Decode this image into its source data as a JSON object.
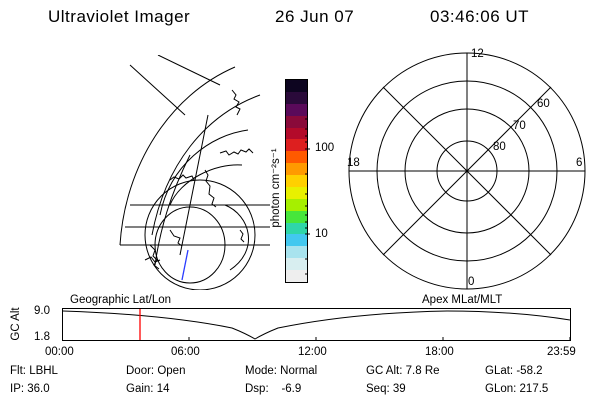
{
  "header": {
    "title": "Ultraviolet Imager",
    "date": "26 Jun 07",
    "time": "03:46:06 UT"
  },
  "colorbar": {
    "unit_label": "photon cm⁻²s⁻¹",
    "ticks": [
      "100",
      "10"
    ],
    "colors": [
      "#0d0520",
      "#2a0a3a",
      "#5a0a5a",
      "#8a0a3a",
      "#b30a2a",
      "#dd1f1f",
      "#ff5a00",
      "#ff9a00",
      "#ffd000",
      "#e8f000",
      "#a6ef00",
      "#47e63b",
      "#2fd6a8",
      "#42c8ef",
      "#a8e3ee",
      "#d8eef0",
      "#eeeeee"
    ]
  },
  "polar_plot": {
    "mlt_labels": {
      "top": "12",
      "bottom": "0",
      "left": "18",
      "right": "6"
    },
    "lat_labels": [
      "60",
      "70",
      "80"
    ]
  },
  "timeline": {
    "left_title": "Geographic Lat/Lon",
    "right_title": "Apex MLat/MLT",
    "y_axis_label": "GC Alt",
    "y_ticks": [
      "9.0",
      "1.8"
    ],
    "x_ticks": [
      "00:00",
      "06:00",
      "12:00",
      "18:00",
      "23:59"
    ]
  },
  "status": {
    "row1": [
      {
        "key": "Flt:",
        "value": "LBHL"
      },
      {
        "key": "Door:",
        "value": "Open"
      },
      {
        "key": "Mode:",
        "value": "Normal"
      },
      {
        "key": "GC Alt:",
        "value": "7.8 Re"
      },
      {
        "key": "GLat:",
        "value": "-58.2"
      }
    ],
    "row2": [
      {
        "key": "IP:",
        "value": "36.0"
      },
      {
        "key": "Gain:",
        "value": "14"
      },
      {
        "key": "Dsp:",
        "value": "-6.9"
      },
      {
        "key": "Seq:",
        "value": "39"
      },
      {
        "key": "GLon:",
        "value": "217.5"
      }
    ]
  }
}
